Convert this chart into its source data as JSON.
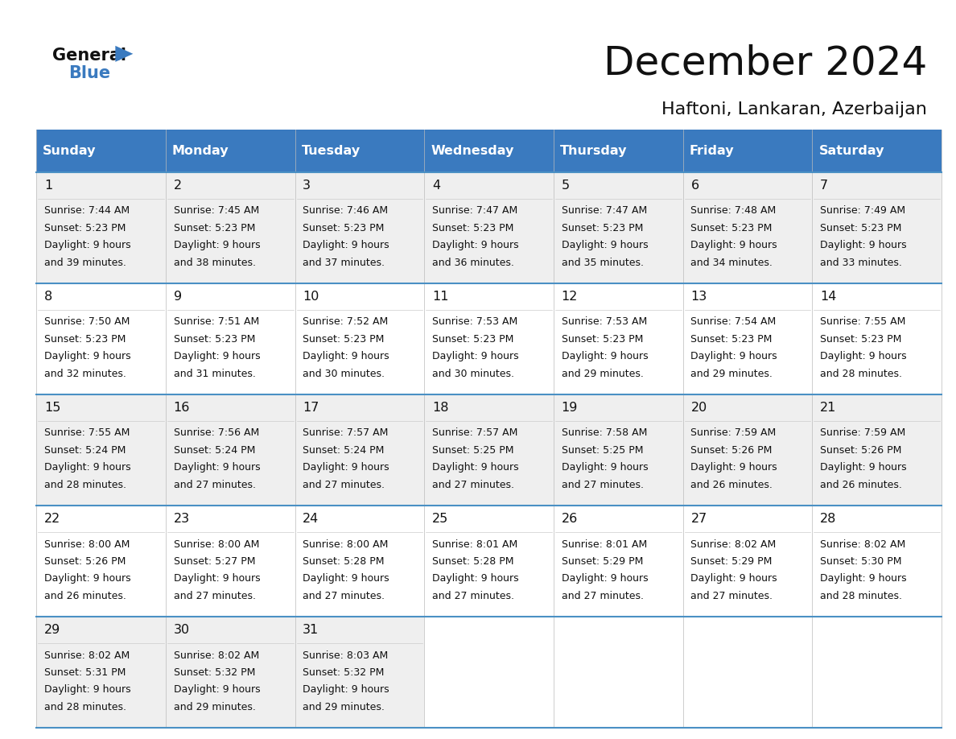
{
  "title": "December 2024",
  "subtitle": "Haftoni, Lankaran, Azerbaijan",
  "header_color": "#3a7abf",
  "header_text_color": "#ffffff",
  "bg_color": "#ffffff",
  "cell_bg_even": "#efefef",
  "cell_bg_odd": "#ffffff",
  "separator_color": "#4a90c4",
  "day_headers": [
    "Sunday",
    "Monday",
    "Tuesday",
    "Wednesday",
    "Thursday",
    "Friday",
    "Saturday"
  ],
  "weeks": [
    [
      {
        "day": 1,
        "sunrise": "7:44 AM",
        "sunset": "5:23 PM",
        "daylight": "9 hours",
        "daylight2": "and 39 minutes."
      },
      {
        "day": 2,
        "sunrise": "7:45 AM",
        "sunset": "5:23 PM",
        "daylight": "9 hours",
        "daylight2": "and 38 minutes."
      },
      {
        "day": 3,
        "sunrise": "7:46 AM",
        "sunset": "5:23 PM",
        "daylight": "9 hours",
        "daylight2": "and 37 minutes."
      },
      {
        "day": 4,
        "sunrise": "7:47 AM",
        "sunset": "5:23 PM",
        "daylight": "9 hours",
        "daylight2": "and 36 minutes."
      },
      {
        "day": 5,
        "sunrise": "7:47 AM",
        "sunset": "5:23 PM",
        "daylight": "9 hours",
        "daylight2": "and 35 minutes."
      },
      {
        "day": 6,
        "sunrise": "7:48 AM",
        "sunset": "5:23 PM",
        "daylight": "9 hours",
        "daylight2": "and 34 minutes."
      },
      {
        "day": 7,
        "sunrise": "7:49 AM",
        "sunset": "5:23 PM",
        "daylight": "9 hours",
        "daylight2": "and 33 minutes."
      }
    ],
    [
      {
        "day": 8,
        "sunrise": "7:50 AM",
        "sunset": "5:23 PM",
        "daylight": "9 hours",
        "daylight2": "and 32 minutes."
      },
      {
        "day": 9,
        "sunrise": "7:51 AM",
        "sunset": "5:23 PM",
        "daylight": "9 hours",
        "daylight2": "and 31 minutes."
      },
      {
        "day": 10,
        "sunrise": "7:52 AM",
        "sunset": "5:23 PM",
        "daylight": "9 hours",
        "daylight2": "and 30 minutes."
      },
      {
        "day": 11,
        "sunrise": "7:53 AM",
        "sunset": "5:23 PM",
        "daylight": "9 hours",
        "daylight2": "and 30 minutes."
      },
      {
        "day": 12,
        "sunrise": "7:53 AM",
        "sunset": "5:23 PM",
        "daylight": "9 hours",
        "daylight2": "and 29 minutes."
      },
      {
        "day": 13,
        "sunrise": "7:54 AM",
        "sunset": "5:23 PM",
        "daylight": "9 hours",
        "daylight2": "and 29 minutes."
      },
      {
        "day": 14,
        "sunrise": "7:55 AM",
        "sunset": "5:23 PM",
        "daylight": "9 hours",
        "daylight2": "and 28 minutes."
      }
    ],
    [
      {
        "day": 15,
        "sunrise": "7:55 AM",
        "sunset": "5:24 PM",
        "daylight": "9 hours",
        "daylight2": "and 28 minutes."
      },
      {
        "day": 16,
        "sunrise": "7:56 AM",
        "sunset": "5:24 PM",
        "daylight": "9 hours",
        "daylight2": "and 27 minutes."
      },
      {
        "day": 17,
        "sunrise": "7:57 AM",
        "sunset": "5:24 PM",
        "daylight": "9 hours",
        "daylight2": "and 27 minutes."
      },
      {
        "day": 18,
        "sunrise": "7:57 AM",
        "sunset": "5:25 PM",
        "daylight": "9 hours",
        "daylight2": "and 27 minutes."
      },
      {
        "day": 19,
        "sunrise": "7:58 AM",
        "sunset": "5:25 PM",
        "daylight": "9 hours",
        "daylight2": "and 27 minutes."
      },
      {
        "day": 20,
        "sunrise": "7:59 AM",
        "sunset": "5:26 PM",
        "daylight": "9 hours",
        "daylight2": "and 26 minutes."
      },
      {
        "day": 21,
        "sunrise": "7:59 AM",
        "sunset": "5:26 PM",
        "daylight": "9 hours",
        "daylight2": "and 26 minutes."
      }
    ],
    [
      {
        "day": 22,
        "sunrise": "8:00 AM",
        "sunset": "5:26 PM",
        "daylight": "9 hours",
        "daylight2": "and 26 minutes."
      },
      {
        "day": 23,
        "sunrise": "8:00 AM",
        "sunset": "5:27 PM",
        "daylight": "9 hours",
        "daylight2": "and 27 minutes."
      },
      {
        "day": 24,
        "sunrise": "8:00 AM",
        "sunset": "5:28 PM",
        "daylight": "9 hours",
        "daylight2": "and 27 minutes."
      },
      {
        "day": 25,
        "sunrise": "8:01 AM",
        "sunset": "5:28 PM",
        "daylight": "9 hours",
        "daylight2": "and 27 minutes."
      },
      {
        "day": 26,
        "sunrise": "8:01 AM",
        "sunset": "5:29 PM",
        "daylight": "9 hours",
        "daylight2": "and 27 minutes."
      },
      {
        "day": 27,
        "sunrise": "8:02 AM",
        "sunset": "5:29 PM",
        "daylight": "9 hours",
        "daylight2": "and 27 minutes."
      },
      {
        "day": 28,
        "sunrise": "8:02 AM",
        "sunset": "5:30 PM",
        "daylight": "9 hours",
        "daylight2": "and 28 minutes."
      }
    ],
    [
      {
        "day": 29,
        "sunrise": "8:02 AM",
        "sunset": "5:31 PM",
        "daylight": "9 hours",
        "daylight2": "and 28 minutes."
      },
      {
        "day": 30,
        "sunrise": "8:02 AM",
        "sunset": "5:32 PM",
        "daylight": "9 hours",
        "daylight2": "and 29 minutes."
      },
      {
        "day": 31,
        "sunrise": "8:03 AM",
        "sunset": "5:32 PM",
        "daylight": "9 hours",
        "daylight2": "and 29 minutes."
      },
      null,
      null,
      null,
      null
    ]
  ]
}
